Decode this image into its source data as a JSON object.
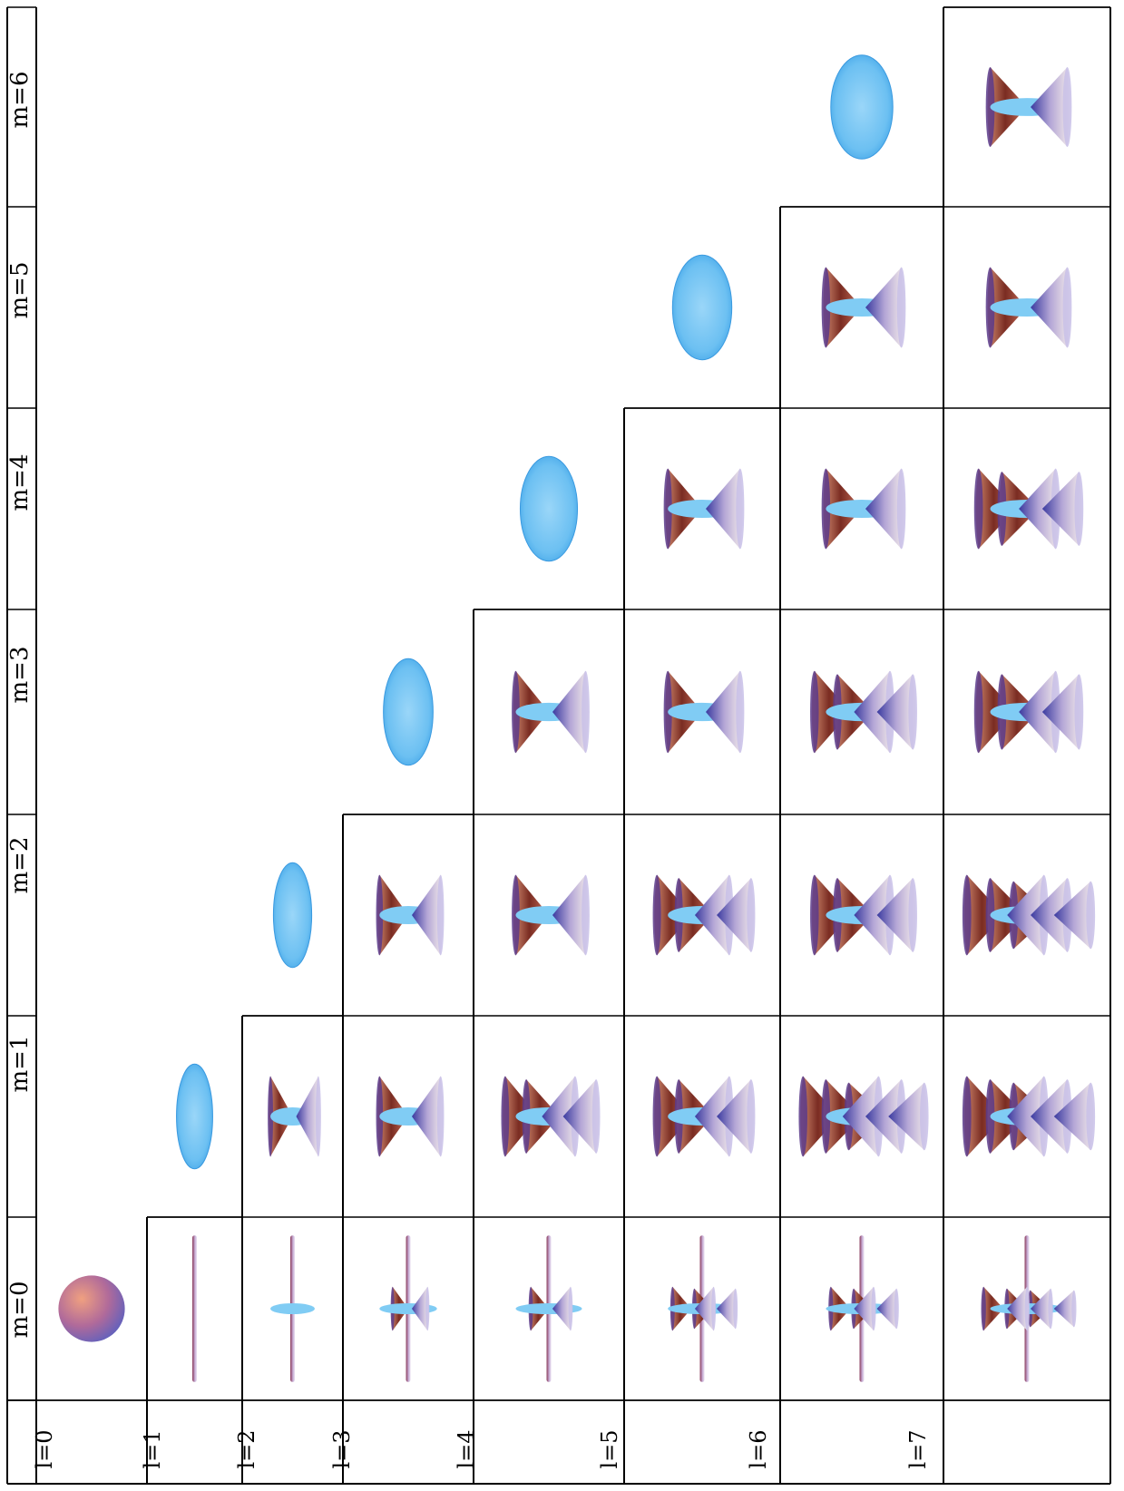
{
  "table": {
    "column_headers": [
      "m=0",
      "m=1",
      "m=2",
      "m=3",
      "m=4",
      "m=5",
      "m=6"
    ],
    "row_headers": [
      "l=0",
      "l=1",
      "l=2",
      "l=3",
      "l=4",
      "l=5",
      "l=6",
      "l=7"
    ]
  },
  "cells": [
    {
      "l": 0,
      "m": 0,
      "shape": "sphere"
    },
    {
      "l": 1,
      "m": 0,
      "shape": "needle",
      "cones": 0
    },
    {
      "l": 2,
      "m": 0,
      "shape": "needle-disk",
      "cones": 0
    },
    {
      "l": 3,
      "m": 0,
      "shape": "needle-cones",
      "cones": 1
    },
    {
      "l": 4,
      "m": 0,
      "shape": "needle-cones",
      "cones": 1
    },
    {
      "l": 5,
      "m": 0,
      "shape": "needle-cones",
      "cones": 2
    },
    {
      "l": 6,
      "m": 0,
      "shape": "needle-cones",
      "cones": 2
    },
    {
      "l": 7,
      "m": 0,
      "shape": "needle-cones",
      "cones": 3
    },
    {
      "l": 1,
      "m": 1,
      "shape": "ellipsoid"
    },
    {
      "l": 2,
      "m": 1,
      "shape": "lobes",
      "cones": 1
    },
    {
      "l": 3,
      "m": 1,
      "shape": "lobes",
      "cones": 1
    },
    {
      "l": 4,
      "m": 1,
      "shape": "lobes",
      "cones": 2
    },
    {
      "l": 5,
      "m": 1,
      "shape": "lobes",
      "cones": 2
    },
    {
      "l": 6,
      "m": 1,
      "shape": "lobes",
      "cones": 3
    },
    {
      "l": 7,
      "m": 1,
      "shape": "lobes",
      "cones": 3
    },
    {
      "l": 2,
      "m": 2,
      "shape": "ellipsoid"
    },
    {
      "l": 3,
      "m": 2,
      "shape": "lobes",
      "cones": 1
    },
    {
      "l": 4,
      "m": 2,
      "shape": "lobes",
      "cones": 1
    },
    {
      "l": 5,
      "m": 2,
      "shape": "lobes",
      "cones": 2
    },
    {
      "l": 6,
      "m": 2,
      "shape": "lobes",
      "cones": 2
    },
    {
      "l": 7,
      "m": 2,
      "shape": "lobes",
      "cones": 3
    },
    {
      "l": 3,
      "m": 3,
      "shape": "ellipsoid"
    },
    {
      "l": 4,
      "m": 3,
      "shape": "lobes",
      "cones": 1
    },
    {
      "l": 5,
      "m": 3,
      "shape": "lobes",
      "cones": 1
    },
    {
      "l": 6,
      "m": 3,
      "shape": "lobes",
      "cones": 2
    },
    {
      "l": 7,
      "m": 3,
      "shape": "lobes",
      "cones": 2
    },
    {
      "l": 4,
      "m": 4,
      "shape": "ellipsoid"
    },
    {
      "l": 5,
      "m": 4,
      "shape": "lobes",
      "cones": 1
    },
    {
      "l": 6,
      "m": 4,
      "shape": "lobes",
      "cones": 1
    },
    {
      "l": 7,
      "m": 4,
      "shape": "lobes",
      "cones": 2
    },
    {
      "l": 5,
      "m": 5,
      "shape": "ellipsoid"
    },
    {
      "l": 6,
      "m": 5,
      "shape": "lobes",
      "cones": 1
    },
    {
      "l": 7,
      "m": 5,
      "shape": "lobes",
      "cones": 1
    },
    {
      "l": 6,
      "m": 6,
      "shape": "ellipsoid"
    },
    {
      "l": 7,
      "m": 6,
      "shape": "lobes",
      "cones": 1
    }
  ],
  "colors": {
    "sphere_a": "#e08060",
    "sphere_b": "#6a70c8",
    "cone_upper_a": "#7a2c22",
    "cone_upper_b": "#c9705a",
    "cone_lower_a": "#4a4aa0",
    "cone_lower_b": "#d8c8e0",
    "disk": "#80ccf4",
    "ellipsoid_a": "#a8dcf8",
    "ellipsoid_b": "#50b0ec",
    "grid_line": "#000000"
  }
}
